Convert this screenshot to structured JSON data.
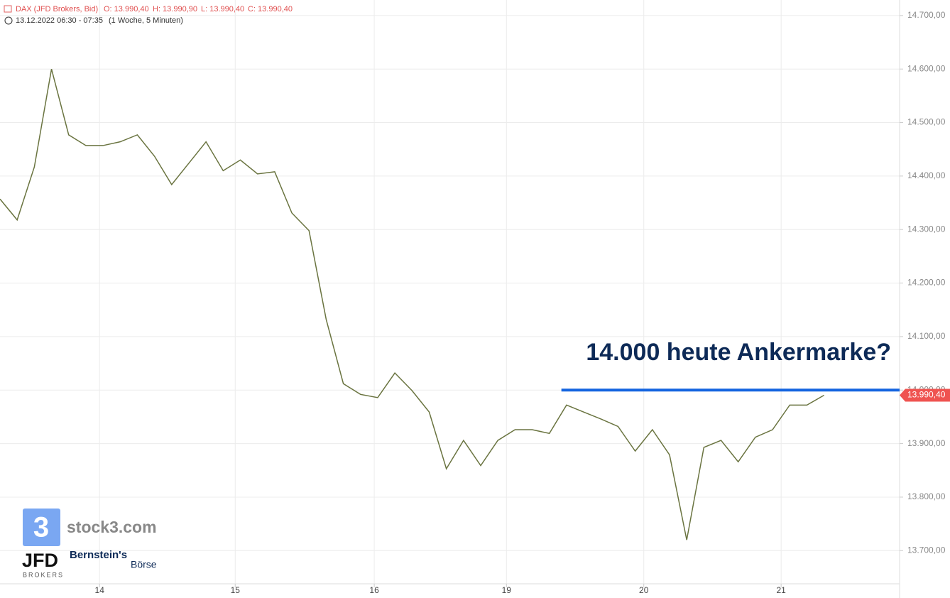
{
  "chart_data": {
    "type": "line",
    "header": {
      "instrument": "DAX (JFD Brokers, Bid)",
      "open": "O: 13.990,40",
      "high": "H: 13.990,90",
      "low": "L: 13.990,40",
      "close": "C: 13.990,40",
      "range": "13.12.2022 06:30 - 07:35",
      "period": "(1 Woche, 5 Minuten)"
    },
    "annotation": "14.000 heute Ankermarke?",
    "annotation_line": {
      "value": 14000,
      "from": 32.7,
      "color": "#1565e0"
    },
    "price_tag": {
      "value": 13990.4,
      "label": "13.990,40",
      "color": "#ef5350"
    },
    "logos": [
      "stock3.com",
      "JFD",
      "BROKERS",
      "Bernstein's",
      "Börse",
      "3"
    ],
    "color": "#6a7440",
    "values": [
      14357,
      14318,
      14417,
      14600,
      14477,
      14457,
      14457,
      14464,
      14477,
      14437,
      14384,
      14424,
      14464,
      14410,
      14430,
      14404,
      14408,
      14331,
      14298,
      14132,
      14012,
      13992,
      13986,
      14032,
      13999,
      13959,
      13853,
      13906,
      13859,
      13906,
      13926,
      13926,
      13919,
      13972,
      13959,
      13946,
      13932,
      13886,
      13926,
      13879,
      13720,
      13893,
      13906,
      13866,
      13912,
      13926,
      13972,
      13972,
      13990.4
    ],
    "xlim": [
      0,
      52.4
    ],
    "xticks": [
      {
        "value": 5.8,
        "label": "14"
      },
      {
        "value": 13.7,
        "label": "15"
      },
      {
        "value": 21.8,
        "label": "16"
      },
      {
        "value": 29.5,
        "label": "19"
      },
      {
        "value": 37.5,
        "label": "20"
      },
      {
        "value": 45.5,
        "label": "21"
      }
    ],
    "ylim": [
      13638,
      14729
    ],
    "yticks": [
      {
        "value": 13700,
        "label": "13.700,00"
      },
      {
        "value": 13800,
        "label": "13.800,00"
      },
      {
        "value": 13900,
        "label": "13.900,00"
      },
      {
        "value": 14000,
        "label": "14.000,00"
      },
      {
        "value": 14100,
        "label": "14.100,00"
      },
      {
        "value": 14200,
        "label": "14.200,00"
      },
      {
        "value": 14300,
        "label": "14.300,00"
      },
      {
        "value": 14400,
        "label": "14.400,00"
      },
      {
        "value": 14500,
        "label": "14.500,00"
      },
      {
        "value": 14600,
        "label": "14.600,00"
      },
      {
        "value": 14700,
        "label": "14.700,00"
      }
    ],
    "grid": true
  }
}
